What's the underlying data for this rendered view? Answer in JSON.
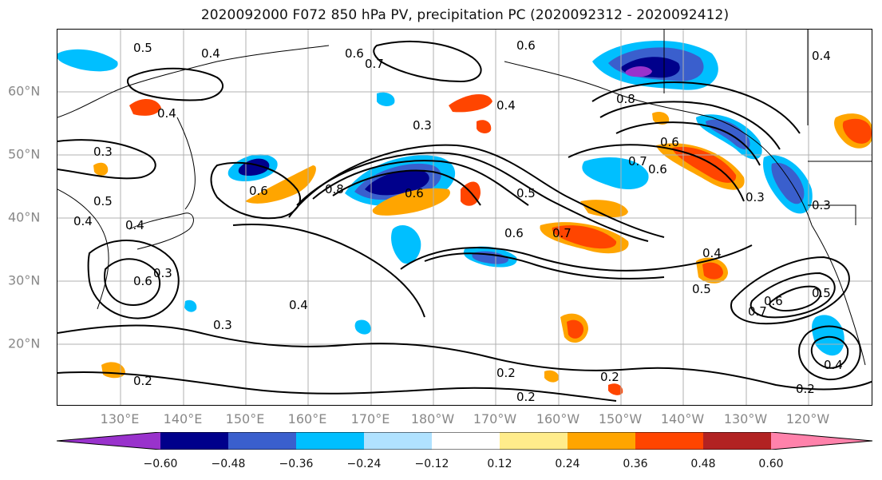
{
  "title": "2020092000 F072 850 hPa PV, precipitation PC (2020092312 - 2020092412)",
  "lat_labels": [
    "60°N",
    "50°N",
    "40°N",
    "30°N",
    "20°N"
  ],
  "lon_labels": [
    "130°E",
    "140°E",
    "150°E",
    "160°E",
    "170°E",
    "180°W",
    "170°W",
    "160°W",
    "150°W",
    "140°W",
    "130°W",
    "120°W"
  ],
  "colorbar": {
    "tick_labels": [
      "−0.60",
      "−0.48",
      "−0.36",
      "−0.24",
      "−0.12",
      "0.12",
      "0.24",
      "0.36",
      "0.48",
      "0.60"
    ],
    "colors": [
      "#9932cc",
      "#00008b",
      "#3a5fcd",
      "#00bfff",
      "#b0e2ff",
      "#ffffff",
      "#ffec8b",
      "#ffa500",
      "#ff4500",
      "#b22222",
      "#ff82ab"
    ]
  },
  "contour_labels": [
    "0.5",
    "0.4",
    "0.6",
    "0.7",
    "0.6",
    "0.4",
    "0.8",
    "0.4",
    "0.3",
    "0.5",
    "0.4",
    "0.6",
    "0.3",
    "0.6",
    "0.8",
    "0.6",
    "0.7",
    "0.6",
    "0.5",
    "0.6",
    "0.7",
    "0.4",
    "0.5",
    "0.3",
    "0.7",
    "0.6",
    "0.5",
    "0.3",
    "0.4",
    "0.2",
    "0.2",
    "0.2",
    "0.2",
    "0.3",
    "0.6",
    "0.3",
    "0.4",
    "0.4",
    "0.2",
    "0.4"
  ]
}
